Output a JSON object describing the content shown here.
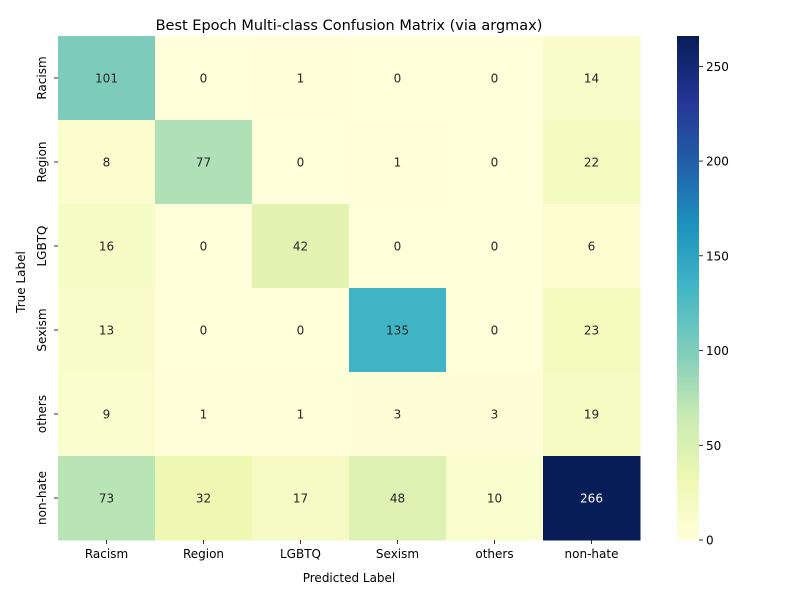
{
  "chart_data": {
    "type": "heatmap",
    "title": "Best Epoch Multi-class Confusion Matrix (via argmax)",
    "xlabel": "Predicted Label",
    "ylabel": "True Label",
    "x_categories": [
      "Racism",
      "Region",
      "LGBTQ",
      "Sexism",
      "others",
      "non-hate"
    ],
    "y_categories": [
      "Racism",
      "Region",
      "LGBTQ",
      "Sexism",
      "others",
      "non-hate"
    ],
    "matrix": [
      [
        101,
        0,
        1,
        0,
        0,
        14
      ],
      [
        8,
        77,
        0,
        1,
        0,
        22
      ],
      [
        16,
        0,
        42,
        0,
        0,
        6
      ],
      [
        13,
        0,
        0,
        135,
        0,
        23
      ],
      [
        9,
        1,
        1,
        3,
        3,
        19
      ],
      [
        73,
        32,
        17,
        48,
        10,
        266
      ]
    ],
    "colormap": "YlGnBu",
    "colorbar": {
      "range": [
        0,
        266
      ],
      "ticks": [
        "0",
        "50",
        "100",
        "150",
        "200",
        "250"
      ]
    },
    "grid": false,
    "legend": "colorbar-right"
  }
}
